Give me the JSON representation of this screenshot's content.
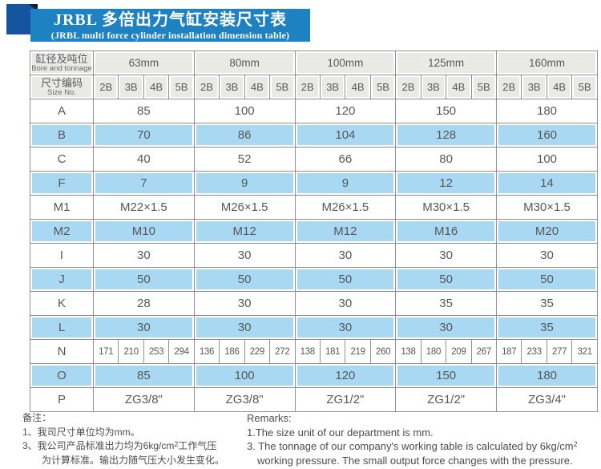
{
  "banner": {
    "title_cn": "JRBL 多倍出力气缸安装尺寸表",
    "title_en": "(JRBL multi force cylinder installation dimension table)"
  },
  "table": {
    "corner_cn": "缸径及吨位",
    "corner_en": "Bore and tonnage",
    "size_cn": "尺寸编码",
    "size_en": "Size No.",
    "bores": [
      "63mm",
      "80mm",
      "100mm",
      "125mm",
      "160mm"
    ],
    "codes": [
      "2B",
      "3B",
      "4B",
      "5B"
    ],
    "rows": [
      {
        "label": "A",
        "shade": false,
        "values": [
          "85",
          "100",
          "120",
          "150",
          "180"
        ]
      },
      {
        "label": "B",
        "shade": true,
        "values": [
          "70",
          "86",
          "104",
          "128",
          "160"
        ]
      },
      {
        "label": "C",
        "shade": false,
        "values": [
          "40",
          "52",
          "66",
          "80",
          "100"
        ]
      },
      {
        "label": "F",
        "shade": true,
        "values": [
          "7",
          "9",
          "9",
          "12",
          "14"
        ]
      },
      {
        "label": "M1",
        "shade": false,
        "values": [
          "M22×1.5",
          "M26×1.5",
          "M26×1.5",
          "M30×1.5",
          "M30×1.5"
        ]
      },
      {
        "label": "M2",
        "shade": true,
        "values": [
          "M10",
          "M12",
          "M12",
          "M16",
          "M20"
        ]
      },
      {
        "label": "I",
        "shade": false,
        "values": [
          "30",
          "30",
          "30",
          "30",
          "30"
        ]
      },
      {
        "label": "J",
        "shade": true,
        "values": [
          "50",
          "50",
          "50",
          "50",
          "50"
        ]
      },
      {
        "label": "K",
        "shade": false,
        "values": [
          "28",
          "30",
          "30",
          "35",
          "35"
        ]
      },
      {
        "label": "L",
        "shade": true,
        "values": [
          "30",
          "30",
          "30",
          "30",
          "35"
        ]
      },
      {
        "label": "N",
        "shade": false,
        "values": [
          "171",
          "210",
          "253",
          "294",
          "136",
          "186",
          "229",
          "272",
          "138",
          "181",
          "219",
          "260",
          "138",
          "180",
          "209",
          "267",
          "187",
          "233",
          "277",
          "321"
        ]
      },
      {
        "label": "O",
        "shade": true,
        "values": [
          "85",
          "100",
          "120",
          "150",
          "180"
        ]
      },
      {
        "label": "P",
        "shade": false,
        "values": [
          "ZG3/8\"",
          "ZG3/8\"",
          "ZG1/2\"",
          "ZG1/2\"",
          "ZG3/4\""
        ]
      }
    ]
  },
  "notes_cn": {
    "heading": "备注：",
    "item1": "1、我司尺寸单位均为mm。",
    "item3_pre": "3、我公司产品标准出力均为6kg/cm",
    "item3_sup": "2",
    "item3_post": "工作气压",
    "item3_cont": "为计算标准。输出力随气压大小发生变化。"
  },
  "notes_en": {
    "heading": "Remarks:",
    "item1": "1.The size unit of our department is mm.",
    "item3_pre": "3. The tonnage of our company's working table is calculated by 6kg/cm",
    "item3_sup": "2",
    "item3_cont": "working pressure. The small output force changes with the pressure."
  },
  "colors": {
    "banner_blue": "#1e81c2",
    "ribbon_dark": "#15549e",
    "ribbon_fold": "#0d2142",
    "row_shade": "#a9d8f3",
    "header_gray": "#e9e9e5",
    "border_gray": "#8f8f8f"
  }
}
